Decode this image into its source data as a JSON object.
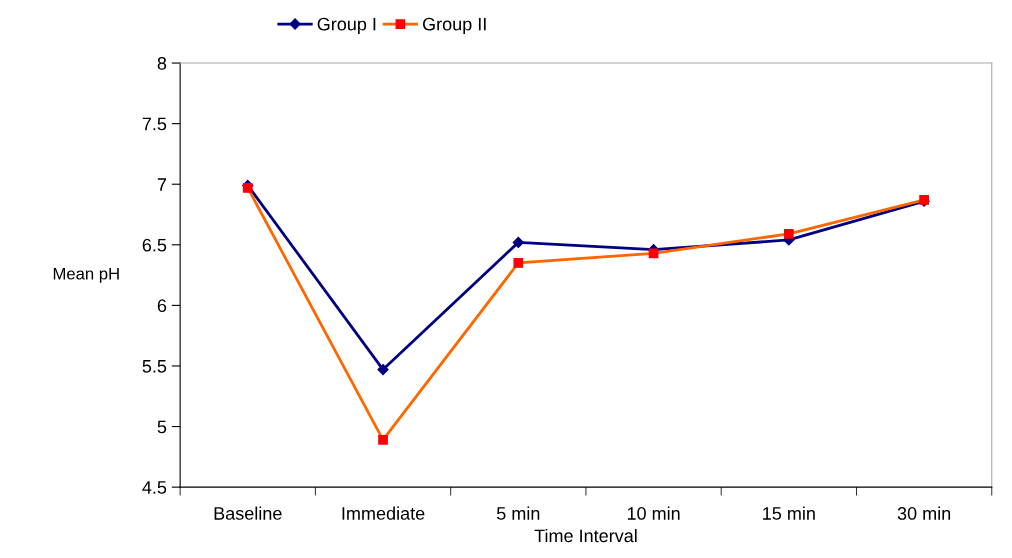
{
  "chart_data": {
    "type": "line",
    "xlabel": "Time Interval",
    "ylabel": "Mean pH",
    "categories": [
      "Baseline",
      "Immediate",
      "5 min",
      "10 min",
      "15 min",
      "30 min"
    ],
    "series": [
      {
        "name": "Group I",
        "color": "#000080",
        "marker": "diamond",
        "values": [
          6.99,
          5.47,
          6.52,
          6.46,
          6.54,
          6.86
        ]
      },
      {
        "name": "Group II",
        "color": "#ff6600",
        "marker": "square",
        "values": [
          6.97,
          4.89,
          6.35,
          6.43,
          6.59,
          6.87
        ]
      }
    ],
    "ylim": [
      4.5,
      8
    ],
    "yticks": [
      4.5,
      5,
      5.5,
      6,
      6.5,
      7,
      7.5,
      8
    ],
    "grid": false,
    "legend": "top",
    "line_style": "solid"
  }
}
